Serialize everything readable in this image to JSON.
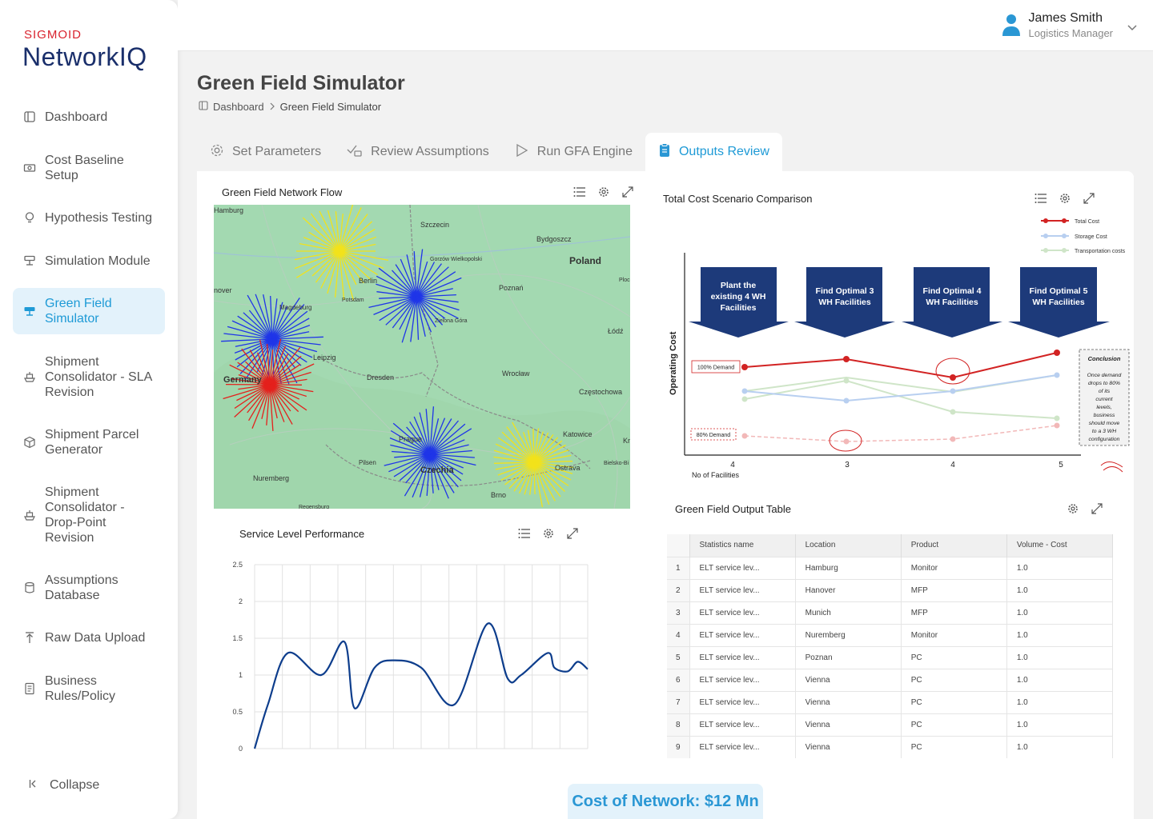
{
  "brand": {
    "company": "SIGMOID",
    "product": "NetworkIQ"
  },
  "user": {
    "name": "James Smith",
    "role": "Logistics Manager"
  },
  "sidebar": {
    "items": [
      {
        "label": "Dashboard",
        "icon": "dashboard-icon"
      },
      {
        "label": "Cost Baseline Setup",
        "icon": "cost-icon"
      },
      {
        "label": "Hypothesis Testing",
        "icon": "lightbulb-icon"
      },
      {
        "label": "Simulation Module",
        "icon": "simulation-icon"
      },
      {
        "label": "Green Field Simulator",
        "icon": "green-field-icon"
      },
      {
        "label": "Shipment Consolidator - SLA Revision",
        "icon": "ship-icon"
      },
      {
        "label": "Shipment Parcel Generator",
        "icon": "parcel-icon"
      },
      {
        "label": "Shipment Consolidator - Drop-Point Revision",
        "icon": "ship-icon"
      },
      {
        "label": "Assumptions Database",
        "icon": "database-icon"
      },
      {
        "label": "Raw Data Upload",
        "icon": "upload-icon"
      },
      {
        "label": "Business Rules/Policy",
        "icon": "rules-icon"
      }
    ],
    "collapse": "Collapse"
  },
  "page": {
    "title": "Green Field Simulator",
    "breadcrumb": [
      "Dashboard",
      "Green Field Simulator"
    ]
  },
  "tabs": [
    "Set Parameters",
    "Review Assumptions",
    "Run GFA Engine",
    "Outputs Review"
  ],
  "map": {
    "title": "Green Field Network Flow",
    "labels": [
      "Hamburg",
      "Szczecin",
      "Bydgoszcz",
      "Poland",
      "Berlin",
      "Potsdam",
      "Gorzów Wielkopolski",
      "Poznań",
      "Magdeburg",
      "Zielona Góra",
      "Łódź",
      "Leipzig",
      "Germany",
      "Dresden",
      "Wrocław",
      "Częstochowa",
      "Prague",
      "Katowice",
      "Czechia",
      "Ostrava",
      "Pilsen",
      "Nuremberg",
      "Brno",
      "Bielsko-Bi",
      "Plock",
      "Kr",
      "Regensburg",
      "nover"
    ]
  },
  "scenario": {
    "title": "Total Cost Scenario Comparison",
    "legend": [
      "Total Cost",
      "Storage Cost",
      "Transportation costs"
    ],
    "banners": [
      "Plant the existing 4 WH Facilities",
      "Find Optimal 3 WH Facilities",
      "Find Optimal 4 WH Facilities",
      "Find Optimal 5 WH Facilities"
    ],
    "ylabel": "Operating Cost",
    "xlabel": "No of Facilities",
    "ticks": [
      "4",
      "3",
      "4",
      "5"
    ],
    "demand100": "100% Demand",
    "demand80": "80% Demand",
    "conclusion_title": "Conclusion",
    "conclusion": "Once demand drops to 80% of its current levels, business should move to a 3 WH configuration",
    "colors": {
      "total": "#d22323",
      "storage": "#b8cff0",
      "transport": "#cfe5c8"
    }
  },
  "chart_data": {
    "type": "line",
    "title": "Service Level Performance",
    "ylim": [
      0,
      2.5
    ],
    "yticks": [
      "2.5",
      "2",
      "1.5",
      "1",
      "0.5",
      "0"
    ],
    "x": [
      0,
      0.04,
      0.1,
      0.2,
      0.27,
      0.3,
      0.36,
      0.42,
      0.5,
      0.6,
      0.7,
      0.76,
      0.8,
      0.88,
      0.9,
      0.94,
      0.97,
      1
    ],
    "series": [
      {
        "values": [
          0,
          0.6,
          1.3,
          1.0,
          1.45,
          0.55,
          1.1,
          1.2,
          1.1,
          0.6,
          1.7,
          0.95,
          1.0,
          1.3,
          1.1,
          1.05,
          1.18,
          1.08
        ]
      }
    ],
    "grid": true,
    "color": "#0d3d8c"
  },
  "table": {
    "title": "Green Field Output Table",
    "columns": [
      "Statistics name",
      "Location",
      "Product",
      "Volume - Cost"
    ],
    "rows": [
      [
        "1",
        "ELT service lev...",
        "Hamburg",
        "Monitor",
        "1.0"
      ],
      [
        "2",
        "ELT service lev...",
        "Hanover",
        "MFP",
        "1.0"
      ],
      [
        "3",
        "ELT service lev...",
        "Munich",
        "MFP",
        "1.0"
      ],
      [
        "4",
        "ELT service lev...",
        "Nuremberg",
        "Monitor",
        "1.0"
      ],
      [
        "5",
        "ELT service lev...",
        "Poznan",
        "PC",
        "1.0"
      ],
      [
        "6",
        "ELT service lev...",
        "Vienna",
        "PC",
        "1.0"
      ],
      [
        "7",
        "ELT service lev...",
        "Vienna",
        "PC",
        "1.0"
      ],
      [
        "8",
        "ELT service lev...",
        "Vienna",
        "PC",
        "1.0"
      ],
      [
        "9",
        "ELT service lev...",
        "Vienna",
        "PC",
        "1.0"
      ]
    ]
  },
  "cost_of_network": "Cost of Network: $12 Mn"
}
